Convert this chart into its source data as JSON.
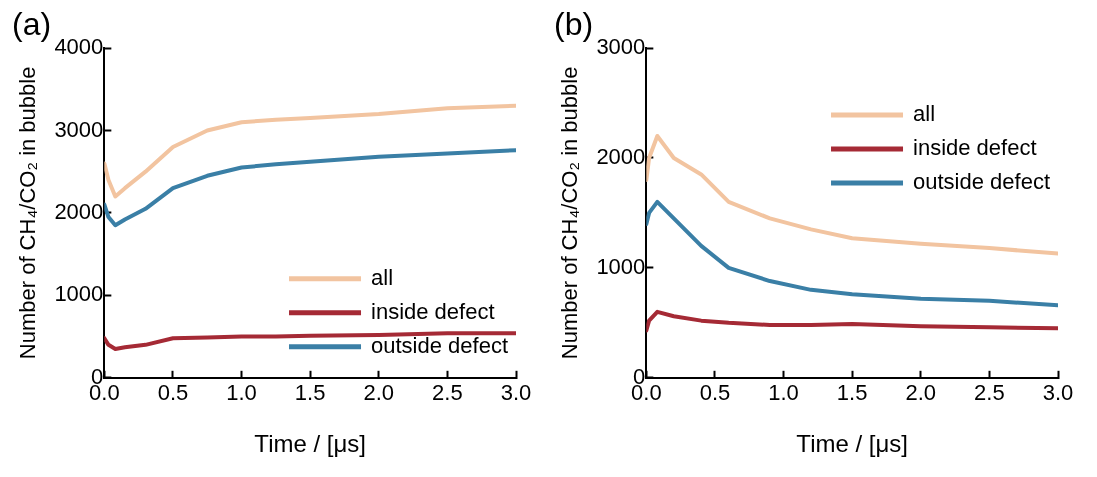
{
  "chart_data": [
    {
      "type": "line",
      "title": "(a)",
      "xlabel": "Time / [μs]",
      "ylabel": "Number of CH₄/CO₂ in bubble",
      "legend": "bottom right",
      "grid": false,
      "marker": "none",
      "line_style": "solid",
      "xlim": [
        0,
        3
      ],
      "xticks": [
        {
          "value": 0,
          "label": "0.0"
        },
        {
          "value": 0.5,
          "label": "0.5"
        },
        {
          "value": 1,
          "label": "1.0"
        },
        {
          "value": 1.5,
          "label": "1.5"
        },
        {
          "value": 2,
          "label": "2.0"
        },
        {
          "value": 2.5,
          "label": "2.5"
        },
        {
          "value": 3,
          "label": "3.0"
        }
      ],
      "ylim": [
        0,
        4000
      ],
      "yticks": [
        0,
        1000,
        2000,
        3000,
        4000
      ],
      "x": [
        0,
        0.03,
        0.08,
        0.15,
        0.3,
        0.5,
        0.75,
        1.0,
        1.25,
        1.5,
        2.0,
        2.5,
        3.0
      ],
      "series": [
        {
          "name": "all",
          "color": "#f2c4a0",
          "values": [
            2600,
            2400,
            2200,
            2300,
            2500,
            2800,
            3000,
            3100,
            3130,
            3150,
            3200,
            3270,
            3300
          ]
        },
        {
          "name": "inside defect",
          "color": "#a52a35",
          "values": [
            480,
            400,
            350,
            370,
            400,
            480,
            490,
            500,
            500,
            510,
            520,
            540,
            540
          ]
        },
        {
          "name": "outside defect",
          "color": "#3a7fa6",
          "values": [
            2100,
            1950,
            1850,
            1920,
            2050,
            2300,
            2450,
            2550,
            2590,
            2620,
            2680,
            2720,
            2760
          ]
        }
      ]
    },
    {
      "type": "line",
      "title": "(b)",
      "xlabel": "Time / [μs]",
      "ylabel": "Number of CH₄/CO₂ in bubble",
      "legend": "top right",
      "grid": false,
      "marker": "none",
      "line_style": "solid",
      "xlim": [
        0,
        3
      ],
      "xticks": [
        {
          "value": 0,
          "label": "0.0"
        },
        {
          "value": 0.5,
          "label": "0.5"
        },
        {
          "value": 1,
          "label": "1.0"
        },
        {
          "value": 1.5,
          "label": "1.5"
        },
        {
          "value": 2,
          "label": "2.0"
        },
        {
          "value": 2.5,
          "label": "2.5"
        },
        {
          "value": 3,
          "label": "3.0"
        }
      ],
      "ylim": [
        0,
        3000
      ],
      "yticks": [
        0,
        1000,
        2000,
        3000
      ],
      "x": [
        0,
        0.02,
        0.08,
        0.2,
        0.4,
        0.6,
        0.9,
        1.2,
        1.5,
        2.0,
        2.5,
        3.0
      ],
      "series": [
        {
          "name": "all",
          "color": "#f2c4a0",
          "values": [
            1800,
            2000,
            2200,
            2000,
            1850,
            1600,
            1450,
            1350,
            1270,
            1220,
            1180,
            1130
          ]
        },
        {
          "name": "inside defect",
          "color": "#a52a35",
          "values": [
            430,
            520,
            600,
            560,
            520,
            500,
            480,
            480,
            490,
            470,
            460,
            450
          ]
        },
        {
          "name": "outside defect",
          "color": "#3a7fa6",
          "values": [
            1400,
            1500,
            1600,
            1450,
            1200,
            1000,
            880,
            800,
            760,
            720,
            700,
            660
          ]
        }
      ]
    }
  ]
}
